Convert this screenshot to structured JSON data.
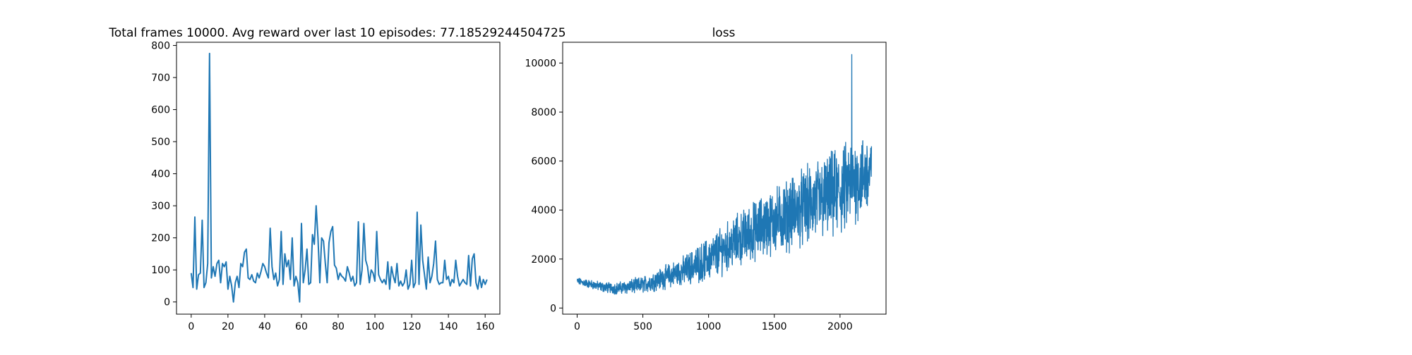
{
  "chart_data": [
    {
      "type": "line",
      "title": "Total frames 10000. Avg reward over last 10 episodes: 77.18529244504725",
      "xlabel": "",
      "ylabel": "",
      "xlim": [
        -8,
        168
      ],
      "ylim": [
        -38,
        810
      ],
      "xticks": [
        0,
        20,
        40,
        60,
        80,
        100,
        120,
        140,
        160
      ],
      "yticks": [
        0,
        100,
        200,
        300,
        400,
        500,
        600,
        700,
        800
      ],
      "grid": false,
      "color": "#1f77b4",
      "series": [
        {
          "x": [
            0,
            1,
            2,
            3,
            4,
            5,
            6,
            7,
            8,
            9,
            10,
            11,
            12,
            13,
            14,
            15,
            16,
            17,
            18,
            19,
            20,
            21,
            22,
            23,
            24,
            25,
            26,
            27,
            28,
            29,
            30,
            31,
            32,
            33,
            34,
            35,
            36,
            37,
            38,
            39,
            40,
            41,
            42,
            43,
            44,
            45,
            46,
            47,
            48,
            49,
            50,
            51,
            52,
            53,
            54,
            55,
            56,
            57,
            58,
            59,
            60,
            61,
            62,
            63,
            64,
            65,
            66,
            67,
            68,
            69,
            70,
            71,
            72,
            73,
            74,
            75,
            76,
            77,
            78,
            79,
            80,
            81,
            82,
            83,
            84,
            85,
            86,
            87,
            88,
            89,
            90,
            91,
            92,
            93,
            94,
            95,
            96,
            97,
            98,
            99,
            100,
            101,
            102,
            103,
            104,
            105,
            106,
            107,
            108,
            109,
            110,
            111,
            112,
            113,
            114,
            115,
            116,
            117,
            118,
            119,
            120,
            121,
            122,
            123,
            124,
            125,
            126,
            127,
            128,
            129,
            130,
            131,
            132,
            133,
            134,
            135,
            136,
            137,
            138,
            139,
            140,
            141,
            142,
            143,
            144,
            145,
            146,
            147,
            148,
            149,
            150,
            151,
            152,
            153,
            154,
            155,
            156,
            157,
            158,
            159,
            160,
            161
          ],
          "y": [
            90,
            45,
            265,
            40,
            85,
            90,
            255,
            45,
            60,
            120,
            775,
            75,
            110,
            80,
            120,
            130,
            60,
            120,
            110,
            125,
            40,
            80,
            50,
            0,
            60,
            80,
            45,
            120,
            110,
            155,
            165,
            75,
            70,
            85,
            65,
            60,
            90,
            75,
            95,
            120,
            110,
            90,
            75,
            230,
            110,
            70,
            90,
            50,
            70,
            220,
            55,
            150,
            110,
            130,
            70,
            200,
            50,
            80,
            60,
            0,
            245,
            60,
            100,
            165,
            55,
            60,
            210,
            180,
            300,
            200,
            60,
            200,
            190,
            120,
            60,
            185,
            220,
            235,
            115,
            105,
            70,
            90,
            80,
            75,
            65,
            110,
            90,
            65,
            80,
            50,
            60,
            250,
            55,
            100,
            245,
            130,
            110,
            60,
            100,
            90,
            65,
            220,
            85,
            70,
            60,
            70,
            55,
            125,
            40,
            110,
            80,
            60,
            120,
            50,
            65,
            50,
            60,
            100,
            40,
            55,
            130,
            45,
            60,
            280,
            55,
            240,
            130,
            85,
            40,
            140,
            60,
            80,
            120,
            190,
            70,
            55,
            60,
            60,
            130,
            70,
            80,
            50,
            70,
            60,
            130,
            80,
            50,
            60,
            70,
            60,
            55,
            145,
            50,
            135,
            150,
            60,
            40,
            80,
            45,
            70,
            55,
            70
          ]
        }
      ]
    },
    {
      "type": "line",
      "title": "loss",
      "xlabel": "",
      "ylabel": "",
      "xlim": [
        -110,
        2350
      ],
      "ylim": [
        -250,
        10850
      ],
      "xticks": [
        0,
        500,
        1000,
        1500,
        2000
      ],
      "yticks": [
        0,
        2000,
        4000,
        6000,
        8000,
        10000
      ],
      "grid": false,
      "color": "#1f77b4",
      "trend": {
        "x": [
          0,
          200,
          300,
          500,
          800,
          1000,
          1200,
          1400,
          1600,
          1800,
          2000,
          2100,
          2240
        ],
        "y": [
          1100,
          850,
          800,
          950,
          1500,
          2000,
          2700,
          3300,
          3800,
          4300,
          4700,
          5200,
          5500
        ]
      },
      "spread": {
        "x": [
          0,
          300,
          500,
          800,
          1000,
          1200,
          1400,
          1600,
          1800,
          2000,
          2240
        ],
        "y": [
          150,
          250,
          350,
          600,
          900,
          1100,
          1300,
          1500,
          1700,
          1900,
          1700
        ]
      },
      "peak": {
        "x": 2090,
        "y": 10350
      }
    }
  ]
}
